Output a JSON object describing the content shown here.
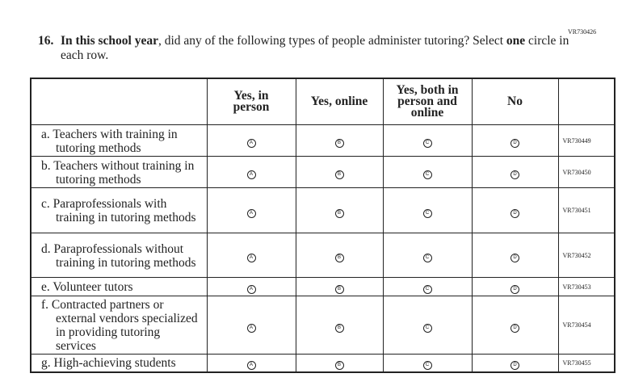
{
  "form_code": "VR730426",
  "question": {
    "number": "16.",
    "parts": [
      "In this school year",
      ", did any of the following types of people administer tutoring? Select ",
      "one",
      " circle in each row."
    ]
  },
  "options": [
    {
      "label": "Yes, in person",
      "letter": "A"
    },
    {
      "label": "Yes, online",
      "letter": "B"
    },
    {
      "label": "Yes, both in person and online",
      "letter": "C"
    },
    {
      "label": "No",
      "letter": "D"
    }
  ],
  "rows": [
    {
      "label": "a. Teachers with training in tutoring methods",
      "code": "VR730449"
    },
    {
      "label": "b. Teachers without training in tutoring methods",
      "code": "VR730450"
    },
    {
      "label": "c. Paraprofessionals with training in tutoring methods",
      "code": "VR730451"
    },
    {
      "label": "d. Paraprofessionals without training in tutoring methods",
      "code": "VR730452"
    },
    {
      "label": "e. Volunteer tutors",
      "code": "VR730453"
    },
    {
      "label": "f. Contracted partners or external vendors specialized in providing tutoring services",
      "code": "VR730454"
    },
    {
      "label": "g. High-achieving students",
      "code": "VR730455"
    }
  ]
}
